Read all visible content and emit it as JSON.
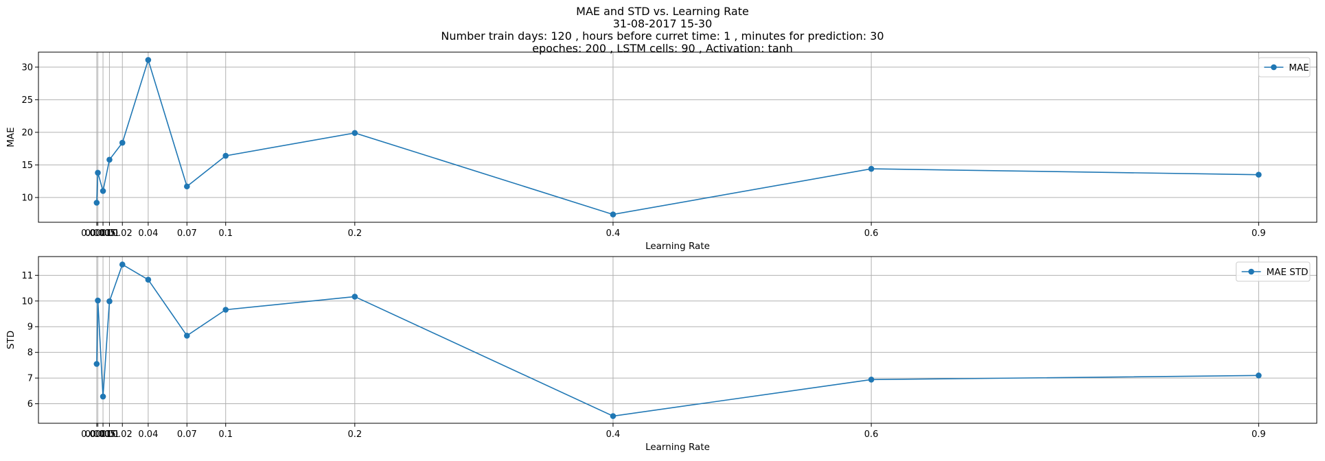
{
  "title_lines": [
    "MAE and STD vs. Learning Rate",
    "31-08-2017 15-30",
    "Number train days: 120 , hours before curret time: 1 , minutes for prediction: 30",
    "epoches: 200 , LSTM cells: 90 , Activation: tanh"
  ],
  "colors": {
    "series": "#1f77b4",
    "grid": "#b0b0b0",
    "axis": "#000000"
  },
  "chart_data": [
    {
      "type": "line",
      "xlabel": "Learning Rate",
      "ylabel": "MAE",
      "x": [
        0.0001,
        0.001,
        0.005,
        0.01,
        0.02,
        0.04,
        0.07,
        0.1,
        0.2,
        0.4,
        0.6,
        0.9
      ],
      "xticks": [
        0.0001,
        0.001,
        0.005,
        0.01,
        0.02,
        0.04,
        0.07,
        0.1,
        0.2,
        0.4,
        0.6,
        0.9
      ],
      "xtick_labels": [
        "0.0001",
        "0.001",
        "0.005",
        "0.01",
        "0.02",
        "0.04",
        "0.07",
        "0.1",
        "0.2",
        "0.4",
        "0.6",
        "0.9"
      ],
      "xlim": [
        -0.045,
        0.945
      ],
      "ylim": [
        6.2,
        32.3
      ],
      "yticks": [
        10,
        15,
        20,
        25,
        30
      ],
      "grid": true,
      "legend_position": "top-right",
      "series": [
        {
          "name": "MAE",
          "marker": "circle",
          "values": [
            9.2,
            13.8,
            11.0,
            15.8,
            18.4,
            31.1,
            11.7,
            16.4,
            19.9,
            7.4,
            14.4,
            13.5
          ]
        }
      ]
    },
    {
      "type": "line",
      "xlabel": "Learning Rate",
      "ylabel": "STD",
      "x": [
        0.0001,
        0.001,
        0.005,
        0.01,
        0.02,
        0.04,
        0.07,
        0.1,
        0.2,
        0.4,
        0.6,
        0.9
      ],
      "xticks": [
        0.0001,
        0.001,
        0.005,
        0.01,
        0.02,
        0.04,
        0.07,
        0.1,
        0.2,
        0.4,
        0.6,
        0.9
      ],
      "xtick_labels": [
        "0.0001",
        "0.001",
        "0.005",
        "0.01",
        "0.02",
        "0.04",
        "0.07",
        "0.1",
        "0.2",
        "0.4",
        "0.6",
        "0.9"
      ],
      "xlim": [
        -0.045,
        0.945
      ],
      "ylim": [
        5.24,
        11.73
      ],
      "yticks": [
        6,
        7,
        8,
        9,
        10,
        11
      ],
      "grid": true,
      "legend_position": "top-right",
      "series": [
        {
          "name": "MAE STD",
          "marker": "circle",
          "values": [
            7.55,
            10.02,
            6.28,
            9.99,
            11.42,
            10.83,
            8.65,
            9.66,
            10.17,
            5.52,
            6.94,
            7.1
          ]
        }
      ]
    }
  ]
}
